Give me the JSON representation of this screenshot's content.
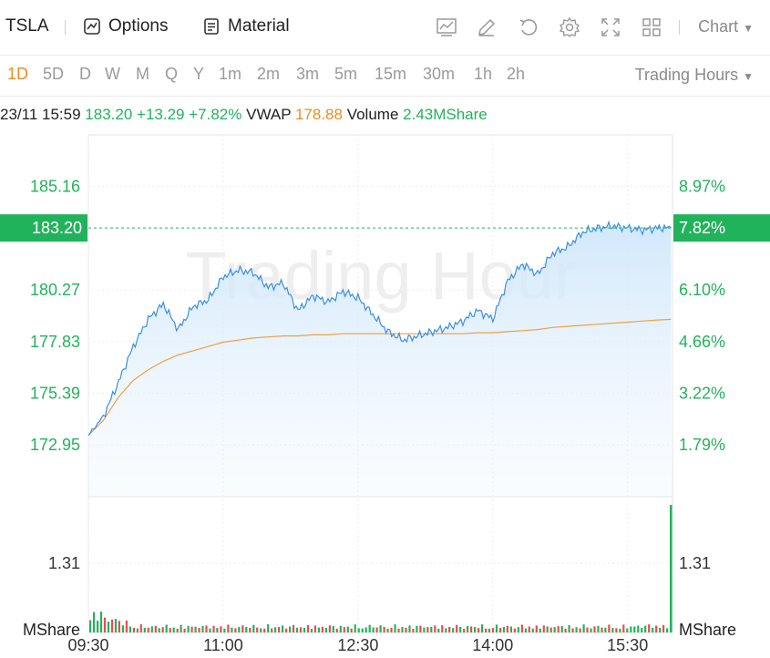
{
  "toolbar": {
    "ticker": "TSLA",
    "options_label": "Options",
    "material_label": "Material",
    "chart_label": "Chart",
    "icons": [
      "indicator-icon",
      "draw-icon",
      "undo-icon",
      "settings-icon",
      "fullscreen-icon",
      "layout-icon"
    ]
  },
  "periods": [
    "1D",
    "5D",
    "D",
    "W",
    "M",
    "Q",
    "Y",
    "1m",
    "2m",
    "3m",
    "5m",
    "15m",
    "30m",
    "1h",
    "2h"
  ],
  "active_period": "1D",
  "trading_hours_label": "Trading Hours",
  "info": {
    "datetime": "23/11 15:59",
    "price": "183.20",
    "change": "+13.29",
    "change_pct": "+7.82%",
    "vwap_label": "VWAP",
    "vwap": "178.88",
    "volume_label": "Volume",
    "volume": "2.43MShare"
  },
  "watermark": "Trading Hour",
  "current_price_tag": "183.20",
  "current_pct_tag": "7.82%",
  "colors": {
    "up": "#21b35b",
    "down": "#f0494a",
    "price_line": "#3a8ee6",
    "vwap_line": "#f0a040",
    "accent": "#f08a24"
  },
  "chart_data": {
    "type": "line",
    "title": "",
    "x_ticks": [
      "09:30",
      "11:00",
      "12:30",
      "14:00",
      "15:30"
    ],
    "price_axis_left": [
      "185.16",
      "180.27",
      "177.83",
      "175.39",
      "172.95"
    ],
    "pct_axis_right": [
      "8.97%",
      "6.10%",
      "4.66%",
      "3.22%",
      "1.79%"
    ],
    "volume_axis": "1.31",
    "volume_unit": "MShare",
    "ylim": [
      170.5,
      187.6
    ],
    "price_series": {
      "name": "Price",
      "x": [
        "09:30",
        "09:40",
        "09:50",
        "10:00",
        "10:10",
        "10:20",
        "10:30",
        "10:40",
        "10:50",
        "11:00",
        "11:10",
        "11:20",
        "11:30",
        "11:40",
        "11:50",
        "12:00",
        "12:10",
        "12:20",
        "12:30",
        "12:40",
        "12:50",
        "13:00",
        "13:10",
        "13:20",
        "13:30",
        "13:40",
        "13:50",
        "14:00",
        "14:10",
        "14:20",
        "14:30",
        "14:40",
        "14:50",
        "15:00",
        "15:10",
        "15:20",
        "15:30",
        "15:40",
        "15:50",
        "15:59"
      ],
      "y": [
        173.4,
        174.3,
        175.9,
        177.6,
        178.9,
        179.6,
        178.4,
        179.5,
        179.8,
        180.9,
        181.2,
        181.1,
        180.4,
        180.6,
        179.3,
        180.0,
        179.7,
        180.2,
        179.9,
        179.1,
        178.3,
        177.9,
        178.1,
        178.3,
        178.5,
        178.8,
        179.3,
        178.9,
        180.7,
        181.5,
        181.0,
        182.0,
        182.3,
        183.0,
        183.2,
        183.3,
        183.2,
        183.1,
        183.2,
        183.2
      ]
    },
    "vwap_series": {
      "name": "VWAP",
      "y": [
        173.4,
        174.1,
        175.2,
        176.0,
        176.5,
        176.9,
        177.2,
        177.4,
        177.6,
        177.8,
        177.9,
        178.0,
        178.05,
        178.1,
        178.1,
        178.15,
        178.15,
        178.2,
        178.2,
        178.2,
        178.2,
        178.2,
        178.2,
        178.2,
        178.2,
        178.2,
        178.25,
        178.25,
        178.3,
        178.35,
        178.4,
        178.5,
        178.55,
        178.6,
        178.65,
        178.7,
        178.75,
        178.8,
        178.85,
        178.88
      ]
    }
  }
}
